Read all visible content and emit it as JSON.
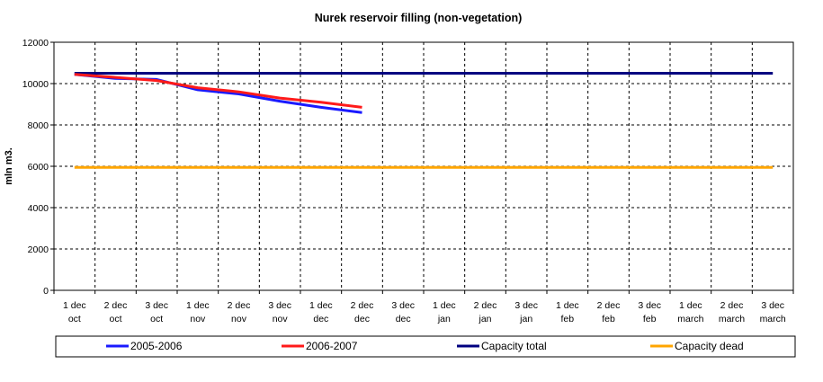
{
  "chart_data": {
    "type": "line",
    "title": "Nurek reservoir filling (non-vegetation)",
    "xlabel": "",
    "ylabel": "mln m3.",
    "ylim": [
      0,
      12000
    ],
    "yticks": [
      0,
      2000,
      4000,
      6000,
      8000,
      10000,
      12000
    ],
    "grid": true,
    "legend_position": "bottom",
    "categories": [
      [
        "1 dec",
        "oct"
      ],
      [
        "2 dec",
        "oct"
      ],
      [
        "3 dec",
        "oct"
      ],
      [
        "1 dec",
        "nov"
      ],
      [
        "2 dec",
        "nov"
      ],
      [
        "3 dec",
        "nov"
      ],
      [
        "1 dec",
        "dec"
      ],
      [
        "2 dec",
        "dec"
      ],
      [
        "3 dec",
        "dec"
      ],
      [
        "1 dec",
        "jan"
      ],
      [
        "2 dec",
        "jan"
      ],
      [
        "3 dec",
        "jan"
      ],
      [
        "1 dec",
        "feb"
      ],
      [
        "2 dec",
        "feb"
      ],
      [
        "3 dec",
        "feb"
      ],
      [
        "1 dec",
        "march"
      ],
      [
        "2 dec",
        "march"
      ],
      [
        "3 dec",
        "march"
      ]
    ],
    "series": [
      {
        "name": "2005-2006",
        "color": "#1a1aff",
        "values": [
          10450,
          10250,
          10200,
          9700,
          9500,
          9150,
          8850,
          8600,
          null,
          null,
          null,
          null,
          null,
          null,
          null,
          null,
          null,
          null
        ]
      },
      {
        "name": "2006-2007",
        "color": "#ff1a1a",
        "values": [
          10450,
          10300,
          10150,
          9800,
          9600,
          9300,
          9100,
          8850,
          null,
          null,
          null,
          null,
          null,
          null,
          null,
          null,
          null,
          null
        ]
      },
      {
        "name": "Capacity total",
        "color": "#000080",
        "values": [
          10500,
          10500,
          10500,
          10500,
          10500,
          10500,
          10500,
          10500,
          10500,
          10500,
          10500,
          10500,
          10500,
          10500,
          10500,
          10500,
          10500,
          10500
        ]
      },
      {
        "name": "Capacity dead",
        "color": "#ffa500",
        "values": [
          5950,
          5950,
          5950,
          5950,
          5950,
          5950,
          5950,
          5950,
          5950,
          5950,
          5950,
          5950,
          5950,
          5950,
          5950,
          5950,
          5950,
          5950
        ]
      }
    ]
  }
}
